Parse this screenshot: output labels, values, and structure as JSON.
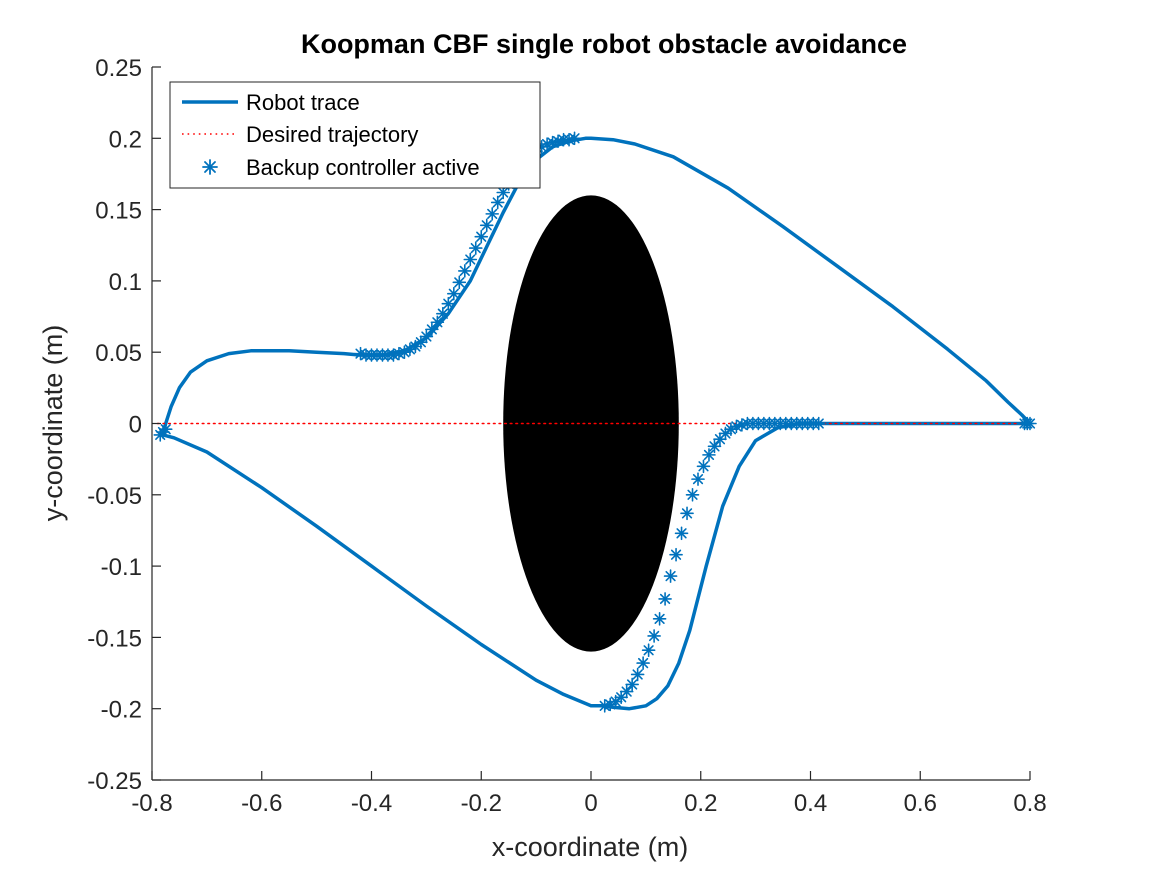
{
  "chart_data": {
    "type": "line",
    "title": "Koopman CBF single robot obstacle avoidance",
    "xlabel": "x-coordinate (m)",
    "ylabel": "y-coordinate (m)",
    "xlim": [
      -0.8,
      0.8
    ],
    "ylim": [
      -0.25,
      0.25
    ],
    "xticks": [
      -0.8,
      -0.6,
      -0.4,
      -0.2,
      0,
      0.2,
      0.4,
      0.6,
      0.8
    ],
    "xtick_labels": [
      "-0.8",
      "-0.6",
      "-0.4",
      "-0.2",
      "0",
      "0.2",
      "0.4",
      "0.6",
      "0.8"
    ],
    "yticks": [
      -0.25,
      -0.2,
      -0.15,
      -0.1,
      -0.05,
      0,
      0.05,
      0.1,
      0.15,
      0.2,
      0.25
    ],
    "ytick_labels": [
      "-0.25",
      "-0.2",
      "-0.15",
      "-0.1",
      "-0.05",
      "0",
      "0.05",
      "0.1",
      "0.15",
      "0.2",
      "0.25"
    ],
    "grid": false,
    "legend_position": "top-left",
    "obstacle": {
      "shape": "ellipse",
      "center": [
        0,
        0
      ],
      "radius_x": 0.16,
      "radius_y": 0.16,
      "color": "#000000"
    },
    "series": [
      {
        "name": "Robot trace",
        "style": "solid",
        "color": "#0072BD",
        "x": [
          -0.78,
          -0.775,
          -0.765,
          -0.75,
          -0.73,
          -0.7,
          -0.66,
          -0.62,
          -0.58,
          -0.55,
          -0.5,
          -0.45,
          -0.42,
          -0.38,
          -0.34,
          -0.3,
          -0.26,
          -0.22,
          -0.19,
          -0.16,
          -0.13,
          -0.1,
          -0.07,
          -0.04,
          -0.01,
          0.0,
          0.04,
          0.08,
          0.15,
          0.25,
          0.35,
          0.45,
          0.55,
          0.65,
          0.72,
          0.76,
          0.785,
          0.795,
          0.795,
          0.79,
          0.75,
          0.7,
          0.6,
          0.5,
          0.42,
          0.38,
          0.34,
          0.3,
          0.27,
          0.24,
          0.21,
          0.18,
          0.16,
          0.14,
          0.12,
          0.1,
          0.07,
          0.04,
          0.02,
          0.0,
          -0.05,
          -0.1,
          -0.2,
          -0.3,
          -0.4,
          -0.5,
          -0.6,
          -0.7,
          -0.76,
          -0.78
        ],
        "y": [
          -0.008,
          0.0,
          0.012,
          0.025,
          0.036,
          0.044,
          0.049,
          0.051,
          0.051,
          0.051,
          0.05,
          0.049,
          0.048,
          0.048,
          0.051,
          0.06,
          0.077,
          0.1,
          0.124,
          0.148,
          0.17,
          0.185,
          0.194,
          0.198,
          0.2,
          0.2,
          0.199,
          0.196,
          0.187,
          0.165,
          0.138,
          0.11,
          0.082,
          0.052,
          0.03,
          0.015,
          0.006,
          0.002,
          0.0,
          0.0,
          0.0,
          0.0,
          0.0,
          0.0,
          0.0,
          0.0,
          -0.003,
          -0.012,
          -0.03,
          -0.058,
          -0.1,
          -0.145,
          -0.168,
          -0.184,
          -0.193,
          -0.198,
          -0.2,
          -0.199,
          -0.198,
          -0.198,
          -0.19,
          -0.18,
          -0.155,
          -0.128,
          -0.1,
          -0.072,
          -0.045,
          -0.02,
          -0.01,
          -0.008
        ]
      },
      {
        "name": "Desired trajectory",
        "style": "dotted",
        "color": "#FF0000",
        "x": [
          -0.79,
          0.795
        ],
        "y": [
          0.0,
          0.0
        ]
      },
      {
        "name": "Backup controller active",
        "style": "markers",
        "marker": "asterisk",
        "color": "#0072BD",
        "x": [
          -0.785,
          -0.78,
          -0.775,
          -0.42,
          -0.41,
          -0.4,
          -0.39,
          -0.38,
          -0.37,
          -0.36,
          -0.35,
          -0.34,
          -0.33,
          -0.32,
          -0.31,
          -0.3,
          -0.29,
          -0.28,
          -0.27,
          -0.26,
          -0.25,
          -0.24,
          -0.23,
          -0.22,
          -0.21,
          -0.2,
          -0.19,
          -0.18,
          -0.17,
          -0.16,
          -0.15,
          -0.14,
          -0.13,
          -0.12,
          -0.11,
          -0.1,
          -0.09,
          -0.08,
          -0.07,
          -0.06,
          -0.05,
          -0.04,
          -0.03,
          0.025,
          0.035,
          0.045,
          0.055,
          0.065,
          0.075,
          0.085,
          0.095,
          0.105,
          0.115,
          0.125,
          0.135,
          0.145,
          0.155,
          0.165,
          0.175,
          0.185,
          0.195,
          0.205,
          0.215,
          0.225,
          0.235,
          0.245,
          0.255,
          0.265,
          0.275,
          0.285,
          0.295,
          0.305,
          0.315,
          0.325,
          0.335,
          0.345,
          0.355,
          0.365,
          0.375,
          0.385,
          0.395,
          0.405,
          0.415,
          0.79,
          0.795,
          0.8
        ],
        "y": [
          -0.008,
          -0.006,
          -0.004,
          0.049,
          0.048,
          0.048,
          0.048,
          0.048,
          0.048,
          0.048,
          0.049,
          0.05,
          0.052,
          0.054,
          0.057,
          0.061,
          0.066,
          0.071,
          0.077,
          0.084,
          0.091,
          0.099,
          0.107,
          0.115,
          0.123,
          0.131,
          0.139,
          0.147,
          0.155,
          0.162,
          0.168,
          0.174,
          0.18,
          0.184,
          0.188,
          0.191,
          0.194,
          0.196,
          0.197,
          0.198,
          0.199,
          0.199,
          0.2,
          -0.198,
          -0.197,
          -0.195,
          -0.192,
          -0.188,
          -0.183,
          -0.176,
          -0.168,
          -0.159,
          -0.149,
          -0.137,
          -0.123,
          -0.107,
          -0.092,
          -0.077,
          -0.063,
          -0.05,
          -0.039,
          -0.03,
          -0.022,
          -0.016,
          -0.011,
          -0.007,
          -0.004,
          -0.002,
          -0.001,
          0.0,
          0.0,
          0.0,
          0.0,
          0.0,
          0.0,
          0.0,
          0.0,
          0.0,
          0.0,
          0.0,
          0.0,
          0.0,
          0.0,
          0.0,
          0.0,
          0.0
        ]
      }
    ]
  }
}
